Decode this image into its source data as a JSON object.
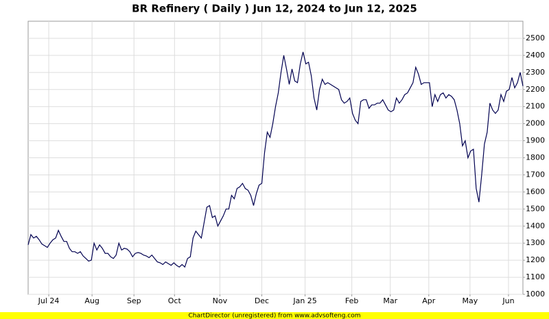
{
  "chart_data": {
    "type": "line",
    "title": "BR Refinery ( Daily ) Jun 12, 2024 to Jun 12, 2025",
    "footer": "ChartDirector (unregistered) from www.advsofteng.com",
    "color": "#000050",
    "grid": true,
    "xlim": [
      0,
      180
    ],
    "xticks": [
      {
        "value": 7.5,
        "label": "Jul 24"
      },
      {
        "value": 23.25,
        "label": "Aug"
      },
      {
        "value": 38.5,
        "label": "Sep"
      },
      {
        "value": 53.25,
        "label": "Oct"
      },
      {
        "value": 69.75,
        "label": "Nov"
      },
      {
        "value": 85,
        "label": "Dec"
      },
      {
        "value": 100.75,
        "label": "Jan 25"
      },
      {
        "value": 117.75,
        "label": "Feb"
      },
      {
        "value": 131.75,
        "label": "Mar"
      },
      {
        "value": 145.75,
        "label": "Apr"
      },
      {
        "value": 160.75,
        "label": "May"
      },
      {
        "value": 174.75,
        "label": "Jun"
      }
    ],
    "ylim": [
      1000,
      2600
    ],
    "yticks": [
      1000,
      1100,
      1200,
      1300,
      1400,
      1500,
      1600,
      1700,
      1800,
      1900,
      2000,
      2100,
      2200,
      2300,
      2400,
      2500
    ],
    "values": [
      1290,
      1350,
      1330,
      1340,
      1320,
      1295,
      1285,
      1275,
      1300,
      1320,
      1330,
      1375,
      1340,
      1310,
      1310,
      1270,
      1250,
      1250,
      1240,
      1250,
      1225,
      1210,
      1195,
      1200,
      1300,
      1260,
      1290,
      1270,
      1240,
      1240,
      1220,
      1210,
      1230,
      1300,
      1260,
      1270,
      1265,
      1250,
      1220,
      1240,
      1245,
      1240,
      1230,
      1225,
      1215,
      1230,
      1210,
      1190,
      1185,
      1175,
      1190,
      1180,
      1170,
      1185,
      1170,
      1160,
      1175,
      1160,
      1210,
      1220,
      1330,
      1370,
      1350,
      1330,
      1420,
      1510,
      1520,
      1450,
      1460,
      1400,
      1430,
      1460,
      1500,
      1500,
      1580,
      1560,
      1620,
      1630,
      1650,
      1620,
      1610,
      1580,
      1520,
      1590,
      1640,
      1650,
      1830,
      1950,
      1920,
      2000,
      2100,
      2180,
      2300,
      2400,
      2320,
      2230,
      2320,
      2250,
      2240,
      2350,
      2420,
      2350,
      2360,
      2280,
      2150,
      2080,
      2200,
      2260,
      2230,
      2240,
      2230,
      2220,
      2210,
      2200,
      2140,
      2120,
      2130,
      2150,
      2060,
      2020,
      2000,
      2130,
      2140,
      2140,
      2090,
      2110,
      2110,
      2120,
      2120,
      2140,
      2110,
      2080,
      2070,
      2080,
      2150,
      2120,
      2140,
      2170,
      2180,
      2210,
      2240,
      2330,
      2290,
      2230,
      2240,
      2240,
      2240,
      2100,
      2170,
      2130,
      2170,
      2180,
      2150,
      2170,
      2160,
      2140,
      2080,
      2000,
      1870,
      1900,
      1800,
      1840,
      1850,
      1620,
      1540,
      1700,
      1880,
      1950,
      2120,
      2080,
      2060,
      2080,
      2170,
      2130,
      2190,
      2200,
      2270,
      2210,
      2240,
      2300,
      2220
    ]
  }
}
